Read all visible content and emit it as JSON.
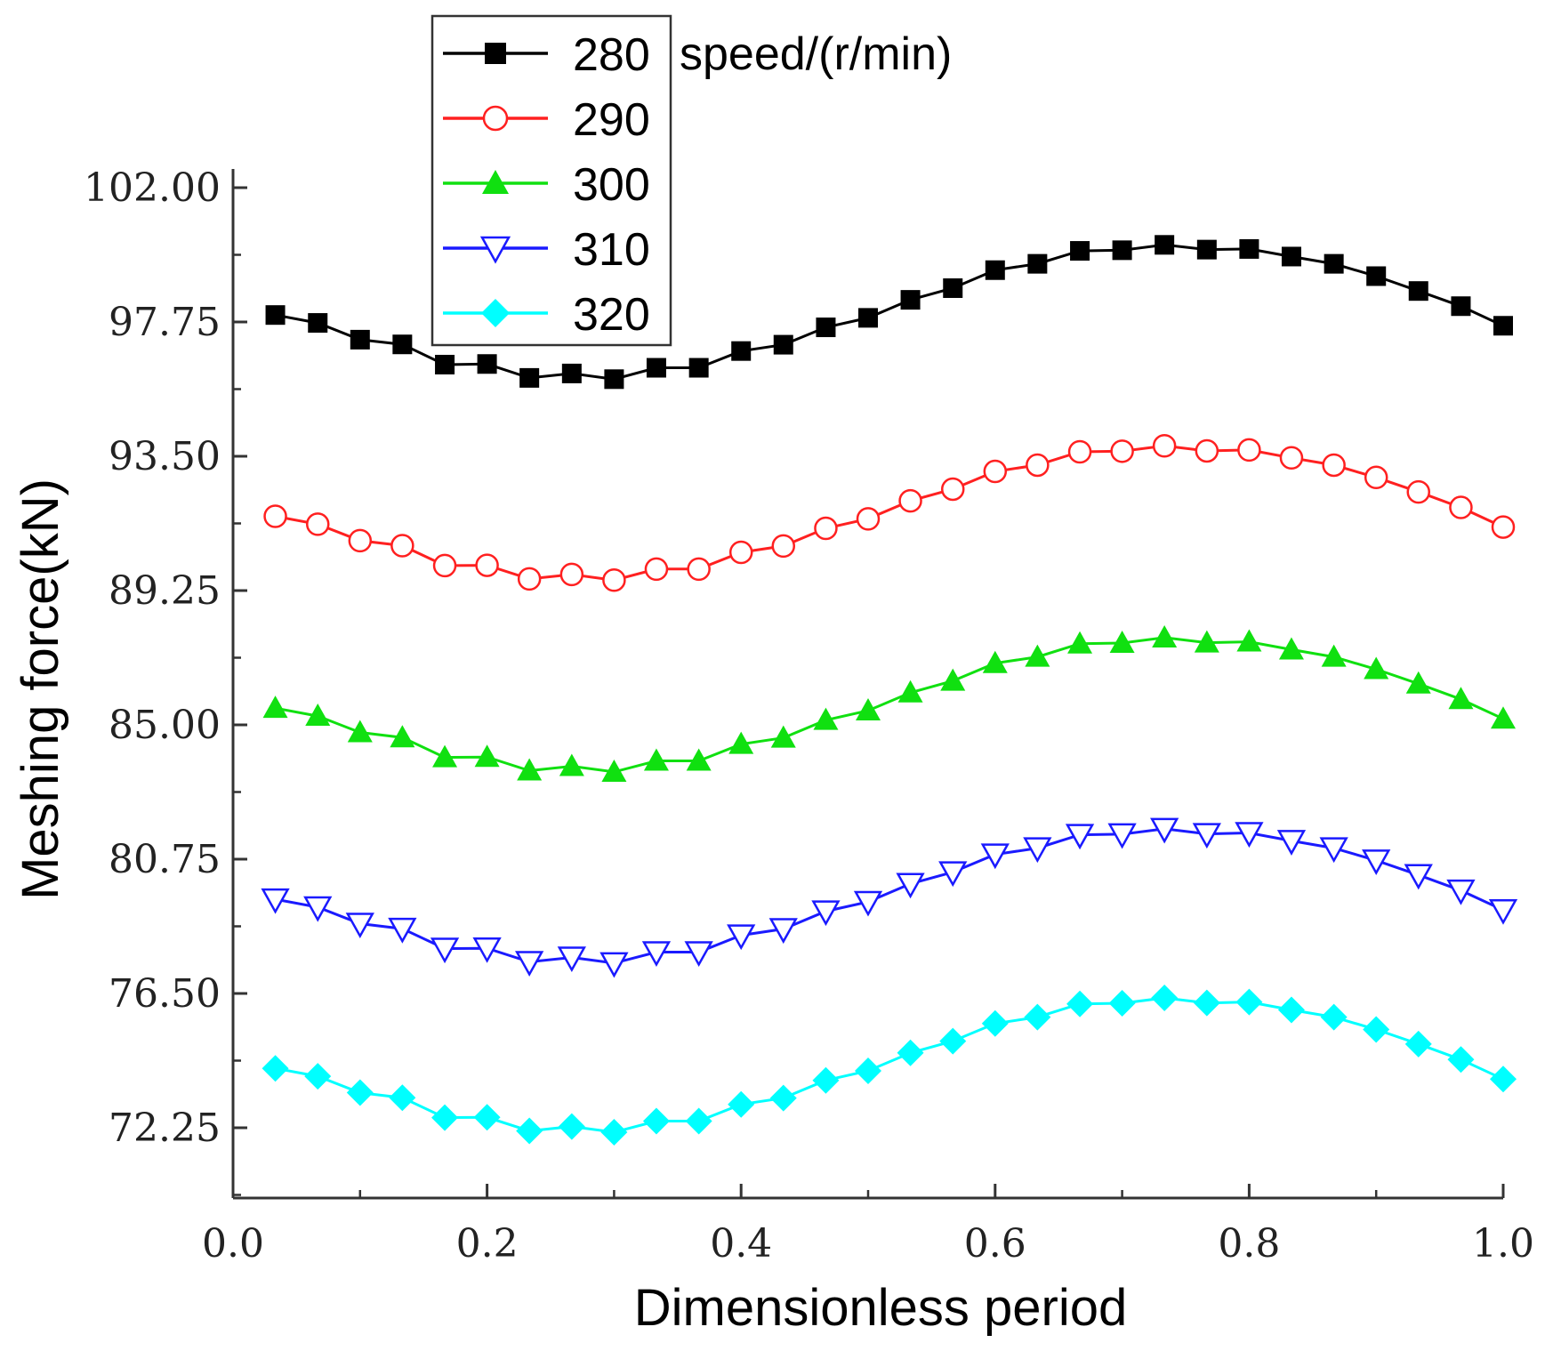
{
  "chart_data": {
    "type": "line",
    "xlabel": "Dimensionless period",
    "ylabel": "Meshing force(kN)",
    "xlim": [
      0.0,
      1.0
    ],
    "ylim": [
      69.0,
      103.0
    ],
    "x_ticks": [
      "0.0",
      "0.2",
      "0.4",
      "0.6",
      "0.8",
      "1.0"
    ],
    "x_tick_values": [
      0.0,
      0.2,
      0.4,
      0.6,
      0.8,
      1.0
    ],
    "y_ticks": [
      "72.25",
      "76.50",
      "80.75",
      "85.00",
      "89.25",
      "93.50",
      "97.75",
      "102.00"
    ],
    "y_tick_values": [
      72.25,
      76.5,
      80.75,
      85.0,
      89.25,
      93.5,
      97.75,
      102.0
    ],
    "legend_title": "speed/(r/min)",
    "legend_position": "top-left",
    "x": [
      0.0333,
      0.0667,
      0.1,
      0.1333,
      0.1667,
      0.2,
      0.2333,
      0.2667,
      0.3,
      0.3333,
      0.3667,
      0.4,
      0.4333,
      0.4667,
      0.5,
      0.5333,
      0.5667,
      0.6,
      0.6333,
      0.6667,
      0.7,
      0.7333,
      0.7667,
      0.8,
      0.8333,
      0.8667,
      0.9,
      0.9333,
      0.9667,
      1.0
    ],
    "series": [
      {
        "name": "280",
        "color": "#000000",
        "marker": "square",
        "values": [
          97.97,
          97.72,
          97.19,
          97.04,
          96.4,
          96.42,
          95.98,
          96.12,
          95.94,
          96.3,
          96.3,
          96.83,
          97.03,
          97.58,
          97.88,
          98.45,
          98.82,
          99.39,
          99.59,
          100.0,
          100.02,
          100.19,
          100.04,
          100.06,
          99.82,
          99.59,
          99.2,
          98.73,
          98.25,
          97.63
        ]
      },
      {
        "name": "290",
        "color": "#ff2020",
        "marker": "circle-open",
        "values": [
          91.6,
          91.35,
          90.83,
          90.67,
          90.04,
          90.05,
          89.62,
          89.76,
          89.58,
          89.93,
          89.93,
          90.46,
          90.66,
          91.22,
          91.52,
          92.09,
          92.46,
          93.02,
          93.22,
          93.64,
          93.66,
          93.83,
          93.67,
          93.7,
          93.45,
          93.22,
          92.83,
          92.37,
          91.88,
          91.26
        ]
      },
      {
        "name": "300",
        "color": "#10e010",
        "marker": "triangle-up",
        "values": [
          85.53,
          85.28,
          84.76,
          84.6,
          83.97,
          83.98,
          83.55,
          83.69,
          83.51,
          83.86,
          83.86,
          84.39,
          84.59,
          85.15,
          85.45,
          86.02,
          86.39,
          86.95,
          87.15,
          87.57,
          87.59,
          87.76,
          87.6,
          87.63,
          87.38,
          87.15,
          86.76,
          86.3,
          85.81,
          85.19
        ]
      },
      {
        "name": "310",
        "color": "#1a1aff",
        "marker": "triangle-down-open",
        "values": [
          79.48,
          79.23,
          78.71,
          78.55,
          77.92,
          77.93,
          77.5,
          77.64,
          77.46,
          77.81,
          77.81,
          78.34,
          78.54,
          79.1,
          79.4,
          79.97,
          80.34,
          80.9,
          81.1,
          81.52,
          81.54,
          81.71,
          81.55,
          81.58,
          81.33,
          81.1,
          80.71,
          80.25,
          79.76,
          79.14
        ]
      },
      {
        "name": "320",
        "color": "#00ffff",
        "marker": "diamond",
        "values": [
          74.13,
          73.88,
          73.36,
          73.2,
          72.57,
          72.58,
          72.15,
          72.29,
          72.11,
          72.46,
          72.46,
          72.99,
          73.19,
          73.75,
          74.05,
          74.62,
          74.99,
          75.55,
          75.75,
          76.17,
          76.19,
          76.36,
          76.2,
          76.23,
          75.98,
          75.75,
          75.36,
          74.9,
          74.41,
          73.79
        ]
      }
    ]
  }
}
